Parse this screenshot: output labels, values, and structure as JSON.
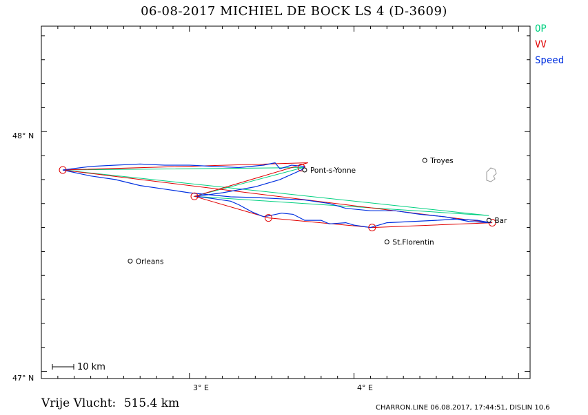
{
  "title": "06-08-2017    MICHIEL DE BOCK    LS 4 (D-3609)",
  "legend": {
    "op": "OP",
    "vv": "VV",
    "speed": "Speed"
  },
  "colors": {
    "op": "#00d080",
    "vv": "#e00000",
    "speed": "#0030e0",
    "frame": "#000000"
  },
  "axes": {
    "y_labels": [
      "48° N",
      "47° N"
    ],
    "x_labels": [
      "3° E",
      "4° E"
    ],
    "lon_range": [
      2.1,
      5.07
    ],
    "lat_range": [
      46.97,
      48.44
    ]
  },
  "scale_bar": {
    "label": "10 km"
  },
  "summary": {
    "label": "Vrije Vlucht:",
    "value": "515.4 km"
  },
  "footer": "CHARRON.LINE 06.08.2017, 17:44:51, DISLIN 10.6",
  "places": [
    {
      "name": "Pont-s-Yonne",
      "lon": 3.7,
      "lat": 47.84
    },
    {
      "name": "Troyes",
      "lon": 4.43,
      "lat": 47.88
    },
    {
      "name": "Bar",
      "lon": 4.82,
      "lat": 47.63
    },
    {
      "name": "St.Florentin",
      "lon": 4.2,
      "lat": 47.54
    },
    {
      "name": "Orleans",
      "lon": 2.64,
      "lat": 47.46
    }
  ],
  "turnpoints": [
    {
      "lon": 2.23,
      "lat": 47.84
    },
    {
      "lon": 3.03,
      "lat": 47.73
    },
    {
      "lon": 3.48,
      "lat": 47.64
    },
    {
      "lon": 4.11,
      "lat": 47.6
    },
    {
      "lon": 4.84,
      "lat": 47.62
    },
    {
      "lon": 3.68,
      "lat": 47.85
    }
  ],
  "routes": {
    "op": [
      {
        "lon": 2.23,
        "lat": 47.84
      },
      {
        "lon": 3.69,
        "lat": 47.85
      },
      {
        "lon": 3.03,
        "lat": 47.73
      },
      {
        "lon": 4.82,
        "lat": 47.65
      },
      {
        "lon": 2.23,
        "lat": 47.84
      }
    ],
    "vv": [
      {
        "lon": 2.23,
        "lat": 47.84
      },
      {
        "lon": 3.72,
        "lat": 47.87
      },
      {
        "lon": 3.03,
        "lat": 47.73
      },
      {
        "lon": 3.48,
        "lat": 47.64
      },
      {
        "lon": 4.11,
        "lat": 47.6
      },
      {
        "lon": 4.84,
        "lat": 47.62
      },
      {
        "lon": 2.23,
        "lat": 47.84
      }
    ]
  },
  "track": [
    [
      2.23,
      47.84
    ],
    [
      2.4,
      47.855
    ],
    [
      2.55,
      47.86
    ],
    [
      2.7,
      47.865
    ],
    [
      2.85,
      47.86
    ],
    [
      3.0,
      47.86
    ],
    [
      3.15,
      47.855
    ],
    [
      3.3,
      47.85
    ],
    [
      3.45,
      47.86
    ],
    [
      3.52,
      47.87
    ],
    [
      3.55,
      47.845
    ],
    [
      3.62,
      47.86
    ],
    [
      3.7,
      47.855
    ],
    [
      3.68,
      47.84
    ],
    [
      3.55,
      47.8
    ],
    [
      3.4,
      47.77
    ],
    [
      3.2,
      47.745
    ],
    [
      3.04,
      47.73
    ],
    [
      3.15,
      47.72
    ],
    [
      3.25,
      47.71
    ],
    [
      3.3,
      47.695
    ],
    [
      3.38,
      47.665
    ],
    [
      3.45,
      47.645
    ],
    [
      3.49,
      47.65
    ],
    [
      3.56,
      47.66
    ],
    [
      3.63,
      47.655
    ],
    [
      3.7,
      47.63
    ],
    [
      3.8,
      47.63
    ],
    [
      3.85,
      47.615
    ],
    [
      3.95,
      47.62
    ],
    [
      4.0,
      47.61
    ],
    [
      4.1,
      47.6
    ],
    [
      4.2,
      47.62
    ],
    [
      4.35,
      47.625
    ],
    [
      4.5,
      47.63
    ],
    [
      4.62,
      47.635
    ],
    [
      4.75,
      47.63
    ],
    [
      4.83,
      47.62
    ],
    [
      4.7,
      47.625
    ],
    [
      4.55,
      47.645
    ],
    [
      4.4,
      47.655
    ],
    [
      4.25,
      47.67
    ],
    [
      4.1,
      47.67
    ],
    [
      3.95,
      47.68
    ],
    [
      3.85,
      47.7
    ],
    [
      3.7,
      47.715
    ],
    [
      3.55,
      47.72
    ],
    [
      3.4,
      47.725
    ],
    [
      3.25,
      47.728
    ],
    [
      3.15,
      47.735
    ],
    [
      3.0,
      47.745
    ],
    [
      2.85,
      47.76
    ],
    [
      2.7,
      47.775
    ],
    [
      2.55,
      47.8
    ],
    [
      2.4,
      47.815
    ],
    [
      2.23,
      47.84
    ]
  ]
}
